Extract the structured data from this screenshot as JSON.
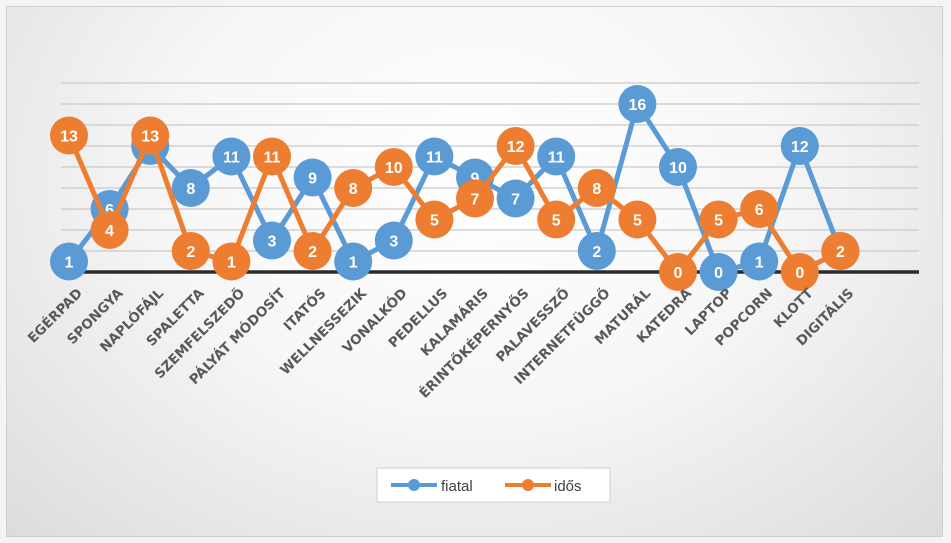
{
  "chart_data": {
    "type": "line",
    "categories": [
      "EGÉRPAD",
      "SPONGYA",
      "NAPLÓFÁJL",
      "SPALETTA",
      "SZEMFELSZEDŐ",
      "PÁLYÁT MÓDOSÍT",
      "ITATÓS",
      "WELLNESSEZIK",
      "VONALKÓD",
      "PEDELLUS",
      "KALAMÁRIS",
      "ÉRINTŐKÉPERNYŐS",
      "PALAVESSZŐ",
      "INTERNETFÜGGŐ",
      "MATURÁL",
      "KATEDRA",
      "LAPTOP",
      "POPCORN",
      "KLOTT",
      "DIGITÁLIS"
    ],
    "series": [
      {
        "name": "fiatal",
        "color": "#5b9bd5",
        "values": [
          1,
          6,
          12,
          8,
          11,
          3,
          9,
          1,
          3,
          11,
          9,
          7,
          11,
          2,
          16,
          10,
          0,
          1,
          12,
          2
        ]
      },
      {
        "name": "idős",
        "color": "#ed7d31",
        "values": [
          13,
          4,
          13,
          2,
          1,
          11,
          2,
          8,
          10,
          5,
          7,
          12,
          5,
          8,
          5,
          0,
          5,
          6,
          0,
          2
        ]
      }
    ],
    "ylim": [
      0,
      18
    ],
    "grid": true,
    "data_labels": true,
    "legend_position": "bottom",
    "title": "",
    "xlabel": "",
    "ylabel": ""
  }
}
